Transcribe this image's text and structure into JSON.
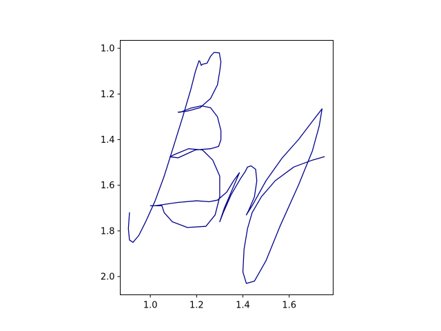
{
  "chart_data": {
    "type": "line",
    "title": "",
    "xlabel": "",
    "ylabel": "",
    "xlim": [
      0.87,
      1.79
    ],
    "ylim": [
      2.08,
      0.965
    ],
    "y_inverted": true,
    "grid": false,
    "x_ticks": [
      1.0,
      1.2,
      1.4,
      1.6
    ],
    "x_tick_labels": [
      "1.0",
      "1.2",
      "1.4",
      "1.6"
    ],
    "y_ticks": [
      1.0,
      1.2,
      1.4,
      1.6,
      1.8,
      2.0
    ],
    "y_tick_labels": [
      "1.0",
      "1.2",
      "1.4",
      "1.6",
      "1.8",
      "2.0"
    ],
    "series": [
      {
        "color": "#00008b",
        "x": [
          1.213,
          1.22,
          1.225,
          1.245,
          1.26,
          1.275,
          1.298,
          1.305,
          1.3,
          1.29,
          1.26,
          1.215,
          1.16,
          1.12,
          1.13,
          1.175,
          1.22,
          1.26,
          1.29,
          1.305,
          1.305,
          1.295,
          1.26,
          1.195,
          1.12,
          1.085,
          1.105,
          1.165,
          1.225,
          1.27,
          1.3,
          1.3,
          1.28,
          1.24,
          1.16,
          1.095,
          1.06,
          1.05,
          1.0,
          1.02,
          1.12,
          1.2,
          1.255,
          1.29,
          1.33,
          1.36,
          1.385,
          1.32,
          1.3,
          1.315,
          1.35,
          1.39,
          1.41,
          1.42,
          1.435,
          1.455,
          1.46,
          1.45,
          1.425,
          1.415,
          1.44,
          1.5,
          1.57,
          1.64,
          1.7,
          1.742,
          1.73,
          1.7,
          1.64,
          1.56,
          1.5,
          1.45,
          1.415,
          1.4,
          1.405,
          1.42,
          1.44,
          1.48,
          1.54,
          1.62,
          1.7,
          1.752
        ],
        "y": [
          1.055,
          1.075,
          1.07,
          1.065,
          1.035,
          1.018,
          1.02,
          1.06,
          1.1,
          1.16,
          1.22,
          1.26,
          1.275,
          1.28,
          1.28,
          1.262,
          1.252,
          1.26,
          1.3,
          1.36,
          1.4,
          1.43,
          1.44,
          1.445,
          1.48,
          1.475,
          1.465,
          1.44,
          1.445,
          1.49,
          1.56,
          1.65,
          1.73,
          1.78,
          1.785,
          1.76,
          1.72,
          1.69,
          1.69,
          1.69,
          1.675,
          1.668,
          1.672,
          1.665,
          1.63,
          1.58,
          1.545,
          1.7,
          1.76,
          1.72,
          1.64,
          1.57,
          1.54,
          1.52,
          1.515,
          1.53,
          1.58,
          1.65,
          1.71,
          1.73,
          1.69,
          1.58,
          1.48,
          1.4,
          1.32,
          1.265,
          1.34,
          1.45,
          1.6,
          1.78,
          1.93,
          2.02,
          2.03,
          1.98,
          1.88,
          1.79,
          1.72,
          1.65,
          1.58,
          1.52,
          1.49,
          1.475
        ]
      },
      {
        "color": "#00008b",
        "x": [
          1.21,
          1.195,
          1.175,
          1.14,
          1.1,
          1.06,
          1.02,
          0.98,
          0.95,
          0.925,
          0.91,
          0.905,
          0.91
        ],
        "y": [
          1.055,
          1.1,
          1.18,
          1.3,
          1.43,
          1.56,
          1.67,
          1.76,
          1.82,
          1.85,
          1.84,
          1.79,
          1.72
        ]
      }
    ]
  }
}
